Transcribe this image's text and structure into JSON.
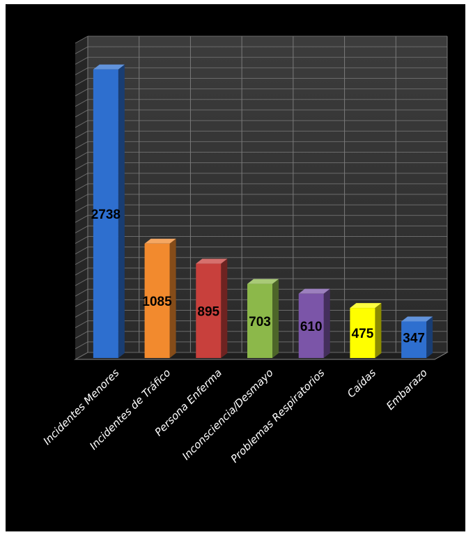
{
  "chart_data": {
    "type": "bar",
    "title": "",
    "xlabel": "",
    "ylabel": "",
    "categories": [
      "Incidentes Menores",
      "Incidentes de Tráfico",
      "Persona Enferma",
      "Inconsciencia/Desmayo",
      "Problemas Respiratorios",
      "Caídas",
      "Embarazo"
    ],
    "values": [
      2738,
      1085,
      895,
      703,
      610,
      475,
      347
    ],
    "colors": [
      "#2e6fcf",
      "#f28a2e",
      "#c8403c",
      "#8cb84a",
      "#7b55a8",
      "#ffff00",
      "#2e6fcf"
    ],
    "ylim": [
      0,
      3000
    ],
    "grid": true,
    "legend": "none",
    "style": "3d-columns",
    "background": "#000000"
  }
}
